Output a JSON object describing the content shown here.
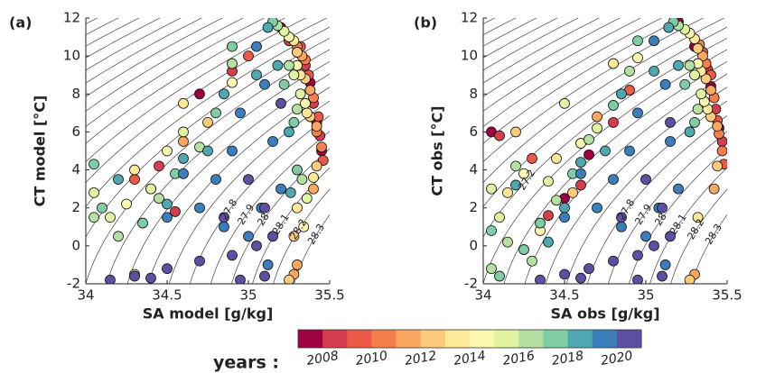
{
  "chart_data": [
    {
      "type": "scatter",
      "panel_label": "(a)",
      "xlabel": "SA model [g/kg]",
      "ylabel": "CT model [°C]",
      "xlim": [
        34,
        35.5
      ],
      "ylim": [
        -2,
        12
      ],
      "xticks": [
        34,
        34.5,
        35,
        35.5
      ],
      "yticks": [
        -2,
        0,
        2,
        4,
        6,
        8,
        10,
        12
      ],
      "contour_levels": [
        25.9,
        26.0,
        26.1,
        26.2,
        26.3,
        26.4,
        26.5,
        26.6,
        26.7,
        26.8,
        26.9,
        27.0,
        27.1,
        27.2,
        27.3,
        27.4,
        27.5,
        27.6,
        27.7,
        27.8,
        27.9,
        28.0,
        28.1,
        28.2,
        28.3
      ],
      "contour_labels": [
        27.8,
        27.9,
        28,
        28.1,
        28.2,
        28.3
      ],
      "series": [
        {
          "color": "#9e0142",
          "x": [
            35.42,
            35.38,
            35.3,
            35.2,
            35.45,
            34.7,
            34.4
          ],
          "y": [
            6.5,
            8.6,
            10.2,
            11.5,
            5,
            8,
            3
          ]
        },
        {
          "color": "#d53e4f",
          "x": [
            35.4,
            35.35,
            35.44,
            35.25,
            34.9,
            34.45,
            34.55
          ],
          "y": [
            7.5,
            9.5,
            5.8,
            10.8,
            9.2,
            4.2,
            1.8
          ]
        },
        {
          "color": "#ea5a47",
          "x": [
            35.43,
            35.37,
            35.32,
            35.46,
            35.0,
            34.3
          ],
          "y": [
            6.8,
            9,
            10.5,
            4.5,
            10,
            3.5
          ]
        },
        {
          "color": "#f67e4b",
          "x": [
            35.4,
            35.35,
            35.42,
            35.3,
            35.45
          ],
          "y": [
            7.8,
            9.8,
            6,
            10.5,
            5.2
          ]
        },
        {
          "color": "#fba760",
          "x": [
            35.38,
            35.33,
            35.42,
            35.28,
            35.4,
            34.6,
            35.3
          ],
          "y": [
            8.2,
            10,
            6.3,
            -1.5,
            3,
            5.5,
            -1
          ]
        },
        {
          "color": "#fdcb7c",
          "x": [
            35.35,
            35.3,
            35.38,
            35.25,
            35.42,
            34.75,
            35.28
          ],
          "y": [
            8.8,
            10.2,
            6.8,
            -1.8,
            4.2,
            6.5,
            0.5
          ]
        },
        {
          "color": "#fee999",
          "x": [
            35.32,
            35.28,
            35.36,
            35.3,
            35.4,
            34.3,
            34.6
          ],
          "y": [
            9,
            10.8,
            7,
            2,
            3.6,
            4,
            7.5
          ]
        },
        {
          "color": "#fbf8b0",
          "x": [
            35.3,
            35.25,
            35.35,
            35.34,
            34.25,
            34.5,
            34.9
          ],
          "y": [
            9.5,
            11,
            7.5,
            1,
            2.2,
            5,
            8.6
          ]
        },
        {
          "color": "#e0f3a0",
          "x": [
            35.28,
            35.22,
            35.32,
            35.36,
            34.15,
            34.4,
            34.6,
            34.05
          ],
          "y": [
            9,
            11.3,
            8,
            2.5,
            1.5,
            3,
            6,
            2.8
          ]
        },
        {
          "color": "#b4e1a2",
          "x": [
            35.25,
            35.18,
            35.3,
            35.33,
            34.2,
            34.45,
            34.05,
            34.7,
            34.9,
            34.3
          ],
          "y": [
            9.5,
            11.6,
            7.2,
            3.5,
            0.5,
            2.5,
            1.5,
            5.2,
            9.6,
            -1.5
          ]
        },
        {
          "color": "#7fcca5",
          "x": [
            35.22,
            35.15,
            35.28,
            35.3,
            34.1,
            34.35,
            34.55,
            34.8,
            34.05,
            34.9
          ],
          "y": [
            8.5,
            11.8,
            6.5,
            4,
            2,
            1.2,
            3.8,
            7,
            4.3,
            10.5
          ]
        },
        {
          "color": "#4fa8b0",
          "x": [
            35.18,
            35.12,
            35.25,
            35.26,
            34.2,
            34.5,
            34.75,
            35.05,
            34.85,
            34.6
          ],
          "y": [
            9.5,
            11.5,
            6,
            2.8,
            3.5,
            2.2,
            5,
            9,
            8,
            4.6
          ]
        },
        {
          "color": "#3a7fbc",
          "x": [
            35.1,
            35.05,
            34.95,
            35.15,
            35.2,
            34.9,
            34.8,
            34.7,
            34.85,
            35.0,
            35.12,
            34.6,
            34.5,
            35.08
          ],
          "y": [
            8.5,
            10.5,
            7,
            5.5,
            3,
            5,
            3.5,
            2,
            1,
            0.5,
            -1,
            3.8,
            1.5,
            2
          ]
        },
        {
          "color": "#5e4fa2",
          "x": [
            34.15,
            34.3,
            34.5,
            34.7,
            34.9,
            35.05,
            35.15,
            35.1,
            35.0,
            34.85,
            34.95,
            35.1,
            34.4,
            35.2
          ],
          "y": [
            -1.8,
            -1.6,
            -1.2,
            -0.8,
            -0.5,
            0,
            0.5,
            2,
            3.5,
            1.5,
            -1.8,
            -1.6,
            -1.7,
            7.5
          ]
        }
      ]
    },
    {
      "type": "scatter",
      "panel_label": "(b)",
      "xlabel": "SA obs [g/kg]",
      "ylabel": "CT obs [°C]",
      "xlim": [
        34,
        35.5
      ],
      "ylim": [
        -2,
        12
      ],
      "xticks": [
        34,
        34.5,
        35,
        35.5
      ],
      "yticks": [
        -2,
        0,
        2,
        4,
        6,
        8,
        10,
        12
      ],
      "contour_levels": [
        25.9,
        26.0,
        26.1,
        26.2,
        26.3,
        26.4,
        26.5,
        26.6,
        26.7,
        26.8,
        26.9,
        27.0,
        27.1,
        27.2,
        27.3,
        27.4,
        27.5,
        27.6,
        27.7,
        27.8,
        27.9,
        28.0,
        28.1,
        28.2,
        28.3
      ],
      "contour_labels": [
        27.2,
        27.8,
        27.9,
        28,
        28.1,
        28.2,
        28.3
      ],
      "series": [
        {
          "color": "#9e0142",
          "x": [
            35.45,
            35.4,
            35.3,
            34.05,
            34.5,
            35.2,
            34.65
          ],
          "y": [
            6.2,
            8.4,
            10.5,
            6,
            2.5,
            11.8,
            4.8
          ]
        },
        {
          "color": "#d53e4f",
          "x": [
            35.43,
            35.38,
            35.47,
            34.1,
            34.4,
            34.8,
            34.6
          ],
          "y": [
            7.2,
            9.3,
            5.5,
            5.8,
            1.6,
            6.5,
            3.2
          ]
        },
        {
          "color": "#ea5a47",
          "x": [
            35.44,
            35.4,
            35.35,
            35.48,
            34.3,
            34.9
          ],
          "y": [
            6.6,
            9,
            10.2,
            4.3,
            4.6,
            8.2
          ]
        },
        {
          "color": "#f67e4b",
          "x": [
            35.42,
            35.37,
            35.45,
            35.33,
            35.47
          ],
          "y": [
            7.8,
            9.6,
            5.9,
            10.6,
            5
          ]
        },
        {
          "color": "#fba760",
          "x": [
            35.4,
            35.35,
            35.44,
            35.3,
            35.42,
            34.7
          ],
          "y": [
            8.2,
            10,
            6.3,
            -1.5,
            3,
            6.8
          ]
        },
        {
          "color": "#fdcb7c",
          "x": [
            35.37,
            35.32,
            35.4,
            35.27,
            35.44,
            34.2,
            34.55
          ],
          "y": [
            8.8,
            10.4,
            6.8,
            -1.8,
            4.2,
            6,
            2.8
          ]
        },
        {
          "color": "#fee999",
          "x": [
            35.34,
            35.3,
            35.38,
            35.32,
            34.15,
            34.45,
            34.8
          ],
          "y": [
            9.2,
            10.9,
            7.2,
            1.5,
            2.8,
            4.6,
            9.6
          ]
        },
        {
          "color": "#fbf8b0",
          "x": [
            35.32,
            35.27,
            35.36,
            34.25,
            34.6,
            34.35,
            34.95
          ],
          "y": [
            9.6,
            11.2,
            7.6,
            3.8,
            5.4,
            0.8,
            9.9
          ]
        },
        {
          "color": "#e0f3a0",
          "x": [
            35.3,
            35.24,
            35.34,
            34.1,
            34.4,
            34.7,
            34.05,
            34.5
          ],
          "y": [
            9,
            11.4,
            8,
            1.5,
            3.4,
            6.2,
            3,
            7.5
          ]
        },
        {
          "color": "#b4e1a2",
          "x": [
            35.27,
            35.2,
            35.32,
            34.15,
            34.45,
            34.05,
            34.65,
            34.9,
            34.3,
            34.2
          ],
          "y": [
            9.5,
            11.6,
            7.2,
            0.2,
            2.4,
            -1.2,
            5.6,
            9.2,
            -0.8,
            4.2
          ]
        },
        {
          "color": "#7fcca5",
          "x": [
            35.24,
            35.17,
            35.3,
            34.1,
            34.35,
            34.55,
            34.8,
            34.05,
            34.95,
            34.25
          ],
          "y": [
            8.5,
            11.8,
            6.5,
            -1.6,
            1.2,
            3.8,
            7.4,
            0.8,
            10.8,
            -0.2
          ]
        },
        {
          "color": "#4fa8b0",
          "x": [
            35.2,
            35.14,
            35.27,
            34.2,
            34.5,
            34.75,
            35.05,
            34.85,
            34.6,
            34.4
          ],
          "y": [
            9.5,
            11.5,
            6,
            3.2,
            2,
            5,
            9.2,
            8,
            4.4,
            0.2
          ]
        },
        {
          "color": "#3a7fbc",
          "x": [
            35.12,
            35.05,
            34.95,
            35.15,
            35.2,
            34.9,
            34.8,
            34.7,
            34.85,
            35.0,
            35.12,
            34.6,
            34.5,
            35.08
          ],
          "y": [
            8.5,
            10.8,
            7,
            5.5,
            3,
            5,
            3.5,
            2,
            1,
            0.5,
            -1,
            3.8,
            1.5,
            2
          ]
        },
        {
          "color": "#5e4fa2",
          "x": [
            34.35,
            34.5,
            34.65,
            34.8,
            34.95,
            35.05,
            35.15,
            35.1,
            35.0,
            34.85,
            34.95,
            35.1,
            34.6,
            35.15
          ],
          "y": [
            -1.8,
            -1.5,
            -1.2,
            -0.8,
            -0.5,
            0,
            0.5,
            2,
            3.5,
            1.5,
            -1.8,
            -1.6,
            -1.7,
            6.5
          ]
        }
      ]
    },
    {
      "type": "colorbar",
      "label": "years :",
      "bins": [
        2007,
        2008,
        2009,
        2010,
        2011,
        2012,
        2013,
        2014,
        2015,
        2016,
        2017,
        2018,
        2019,
        2020,
        2021
      ],
      "colors": [
        "#9e0142",
        "#d53e4f",
        "#ea5a47",
        "#f67e4b",
        "#fba760",
        "#fdcb7c",
        "#fee999",
        "#fbf8b0",
        "#e0f3a0",
        "#b4e1a2",
        "#7fcca5",
        "#4fa8b0",
        "#3a7fbc",
        "#5e4fa2"
      ],
      "ticks": [
        2008,
        2010,
        2012,
        2014,
        2016,
        2018,
        2020
      ]
    }
  ]
}
